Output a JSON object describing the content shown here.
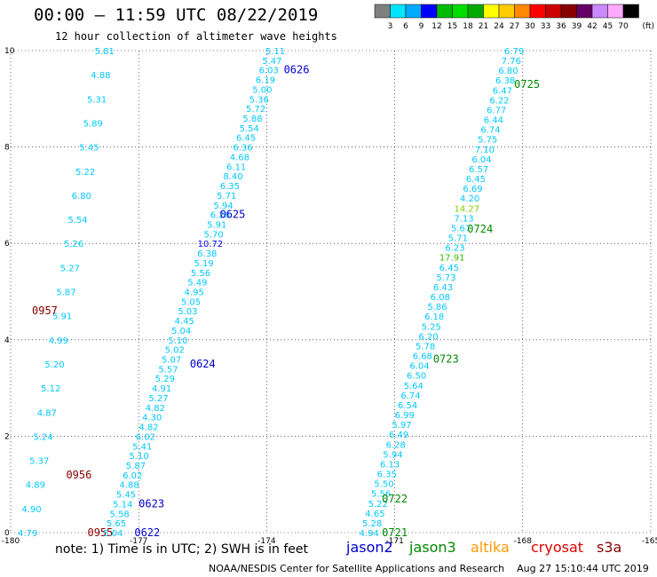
{
  "title": "00:00 — 11:59 UTC 08/22/2019",
  "subtitle": "12 hour collection of altimeter wave heights",
  "note": "note: 1) Time is in UTC; 2) SWH is in feet",
  "footer": "NOAA/NESDIS Center for Satellite Applications and Research    Aug 27 15:10:44 UTC 2019",
  "satellites": [
    {
      "name": "jason2",
      "color": "#0000cc"
    },
    {
      "name": "jason3",
      "color": "#008800"
    },
    {
      "name": "altika",
      "color": "#ff9900"
    },
    {
      "name": "cryosat",
      "color": "#dd0000"
    },
    {
      "name": "s3a",
      "color": "#880000"
    }
  ],
  "colorbar": {
    "unit": "(ft)",
    "colors": [
      "#808080",
      "#00e5ff",
      "#00aaff",
      "#0000ff",
      "#00bb00",
      "#00dd00",
      "#00aa00",
      "#ffff00",
      "#ffcc00",
      "#ff8800",
      "#ff0000",
      "#cc0000",
      "#880000",
      "#660066",
      "#cc88ff",
      "#ffaaff",
      "#000000"
    ],
    "labels": [
      "3",
      "6",
      "9",
      "12",
      "15",
      "18",
      "21",
      "24",
      "27",
      "30",
      "33",
      "36",
      "39",
      "42",
      "45",
      "70"
    ]
  },
  "chart_data": {
    "type": "scatter",
    "xlim": [
      -180,
      -165
    ],
    "ylim": [
      0,
      10
    ],
    "xticks": [
      "-180",
      "-177",
      "-174",
      "-171",
      "-168",
      "-165"
    ],
    "yticks": [
      "0",
      "2",
      "4",
      "6",
      "8",
      "10"
    ],
    "grid": true,
    "tracks": [
      {
        "id": "s3a_1",
        "x_start": -179.6,
        "x_end": -177.8,
        "values": [
          "4.79",
          "4.90",
          "4.89",
          "5.37",
          "5.24",
          "4.87",
          "5.12",
          "5.20",
          "4.99",
          "5.91",
          "5.87",
          "5.27",
          "5.26",
          "5.54",
          "6.80",
          "5.22",
          "5.45",
          "5.89",
          "5.31",
          "4.88",
          "5.81"
        ],
        "labels": [
          {
            "text": "0957",
            "x": -179.2,
            "y": 4.6,
            "color": "#880000"
          },
          {
            "text": "0956",
            "x": -178.4,
            "y": 1.2,
            "color": "#880000"
          },
          {
            "text": "0955",
            "x": -177.9,
            "y": 0.0,
            "color": "#880000"
          }
        ]
      },
      {
        "id": "jason2_1",
        "x_start": -177.6,
        "x_end": -173.8,
        "values": [
          "5.04",
          "5.65",
          "5.58",
          "5.14",
          "5.45",
          "4.88",
          "6.02",
          "5.87",
          "5.10",
          "5.41",
          "6.02",
          "4.82",
          "4.30",
          "4.82",
          "5.27",
          "4.91",
          "5.29",
          "5.57",
          "5.07",
          "5.02",
          "5.10",
          "5.04",
          "4.45",
          "5.03",
          "5.05",
          "4.95",
          "5.49",
          "5.56",
          "5.19",
          "6.38",
          "10.72",
          "5.70",
          "5.91",
          "6.26",
          "5.94",
          "5.71",
          "6.35",
          "8.40",
          "6.11",
          "4.68",
          "6.36",
          "6.45",
          "5.54",
          "5.88",
          "5.72",
          "5.36",
          "5.00",
          "6.19",
          "6.03",
          "5.47",
          "5.11"
        ],
        "labels": [
          {
            "text": "0622",
            "x": -176.8,
            "y": 0.0,
            "color": "#0000cc"
          },
          {
            "text": "0623",
            "x": -176.7,
            "y": 0.6,
            "color": "#0000cc"
          },
          {
            "text": "0624",
            "x": -175.5,
            "y": 3.5,
            "color": "#0000cc"
          },
          {
            "text": "0625",
            "x": -174.8,
            "y": 6.6,
            "color": "#0000cc"
          },
          {
            "text": "0626",
            "x": -173.3,
            "y": 9.6,
            "color": "#0000cc"
          }
        ]
      },
      {
        "id": "jason3_1",
        "x_start": -171.6,
        "x_end": -168.2,
        "values": [
          "4.94",
          "5.28",
          "4.65",
          "5.22",
          "5.56",
          "5.50",
          "6.35",
          "6.13",
          "5.94",
          "6.28",
          "6.49",
          "5.97",
          "6.99",
          "6.54",
          "6.74",
          "5.64",
          "6.50",
          "6.04",
          "6.68",
          "5.78",
          "6.20",
          "5.25",
          "6.18",
          "5.86",
          "6.08",
          "6.43",
          "5.73",
          "6.45",
          "17.91",
          "6.23",
          "5.71",
          "5.67",
          "7.13",
          "14.27",
          "4.20",
          "6.69",
          "6.45",
          "6.57",
          "6.04",
          "7.10",
          "5.75",
          "6.74",
          "6.44",
          "6.77",
          "6.22",
          "6.47",
          "6.38",
          "6.80",
          "7.76",
          "6.79"
        ],
        "labels": [
          {
            "text": "0721",
            "x": -171.0,
            "y": 0.0,
            "color": "#008800"
          },
          {
            "text": "0722",
            "x": -171.0,
            "y": 0.7,
            "color": "#008800"
          },
          {
            "text": "0723",
            "x": -169.8,
            "y": 3.6,
            "color": "#008800"
          },
          {
            "text": "0724",
            "x": -169.0,
            "y": 6.3,
            "color": "#008800"
          },
          {
            "text": "0725",
            "x": -167.9,
            "y": 9.3,
            "color": "#008800"
          }
        ]
      }
    ]
  }
}
